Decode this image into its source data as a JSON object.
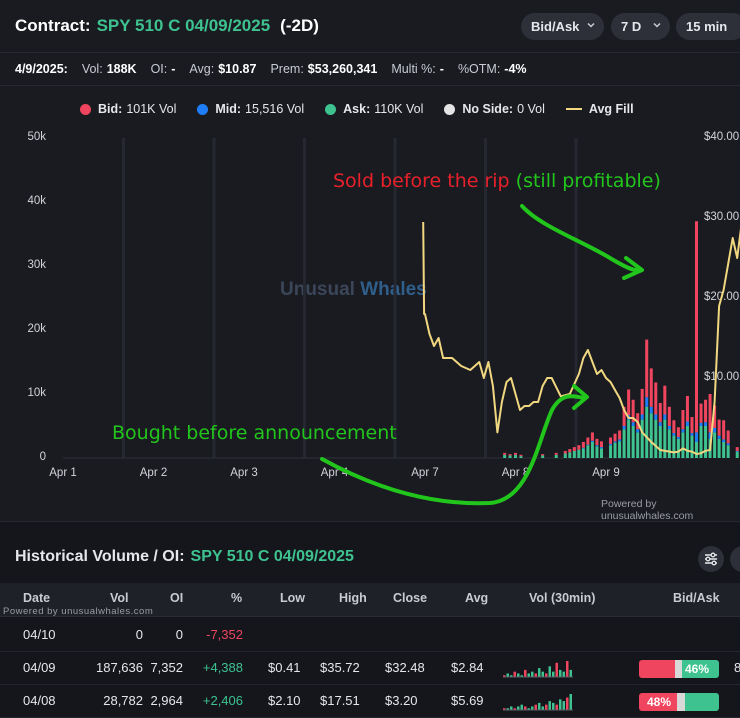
{
  "header": {
    "contract_label": "Contract:",
    "contract_name": "SPY 510 C 04/09/2025",
    "dte": "(-2D)",
    "side_filter": "Bid/Ask",
    "range_filter": "7 D",
    "interval_filter": "15 min"
  },
  "summary": {
    "date": "4/9/2025:",
    "vol_label": "Vol:",
    "vol_value": "188K",
    "oi_label": "OI:",
    "oi_value": "-",
    "avg_label": "Avg:",
    "avg_value": "$10.87",
    "prem_label": "Prem:",
    "prem_value": "$53,260,341",
    "multi_label": "Multi %:",
    "multi_value": "-",
    "otm_label": "%OTM:",
    "otm_value": "-4%"
  },
  "legend": {
    "bid_label": "Bid:",
    "bid_value": "101K Vol",
    "mid_label": "Mid:",
    "mid_value": "15,516 Vol",
    "ask_label": "Ask:",
    "ask_value": "110K Vol",
    "noside_label": "No Side:",
    "noside_value": "0 Vol",
    "avgfill_label": "Avg Fill"
  },
  "colors": {
    "bid": "#f0455e",
    "mid": "#1f7ef7",
    "ask": "#3ec28f",
    "noside": "#e4e4e4",
    "avgfill": "#f1d77f",
    "annotation_red": "#e8202a",
    "annotation_green": "#22c51c"
  },
  "chart_data": {
    "type": "bar",
    "y_left_ticks": [
      "50k",
      "40k",
      "30k",
      "20k",
      "10k",
      "0"
    ],
    "y_right_ticks": [
      "$40.00",
      "$30.00",
      "$20.00",
      "$10.00"
    ],
    "x_ticks": [
      "Apr 1",
      "Apr 2",
      "Apr 3",
      "Apr 4",
      "Apr 7",
      "Apr 8",
      "Apr 9"
    ],
    "ylim_volume": [
      0,
      50000
    ],
    "ylim_price": [
      0,
      40
    ],
    "watermark_a": "Unusual",
    "watermark_b": "Whales",
    "powered_by": "Powered by unusualwhales.com",
    "volume_bars": {
      "x": [
        4.88,
        4.94,
        5.0,
        5.06,
        5.3,
        5.45,
        5.55,
        5.6,
        5.65,
        5.7,
        5.75,
        5.8,
        5.85,
        5.9,
        5.95,
        6.05,
        6.1,
        6.15,
        6.2,
        6.25,
        6.3,
        6.35,
        6.4,
        6.45,
        6.5,
        6.55,
        6.6,
        6.65,
        6.7,
        6.75,
        6.8,
        6.85,
        6.9,
        6.95,
        7.0,
        7.05,
        7.1,
        7.15,
        7.2,
        7.25,
        7.3,
        7.35,
        7.45,
        7.55,
        7.65,
        7.75
      ],
      "bid": [
        300,
        200,
        300,
        200,
        200,
        300,
        400,
        500,
        600,
        700,
        900,
        1100,
        1300,
        1000,
        900,
        1000,
        1200,
        1400,
        3000,
        4000,
        3500,
        2500,
        4000,
        9000,
        6000,
        5000,
        3000,
        4500,
        3000,
        2000,
        1500,
        3000,
        4000,
        2500,
        33000,
        3000,
        3500,
        6000,
        3500,
        2500,
        3000,
        2000,
        600,
        400,
        300,
        200
      ],
      "mid": [
        0,
        0,
        0,
        0,
        0,
        0,
        0,
        0,
        0,
        0,
        100,
        100,
        200,
        200,
        200,
        200,
        200,
        300,
        500,
        700,
        600,
        500,
        800,
        1500,
        1000,
        800,
        600,
        800,
        500,
        400,
        300,
        500,
        700,
        400,
        1500,
        500,
        600,
        1000,
        700,
        500,
        400,
        300,
        100,
        0,
        0,
        0
      ],
      "ask": [
        500,
        400,
        500,
        300,
        400,
        500,
        700,
        900,
        1100,
        1300,
        1500,
        2000,
        2500,
        1800,
        1500,
        2000,
        2400,
        2600,
        4500,
        6000,
        5000,
        4000,
        6000,
        8000,
        7000,
        6000,
        5000,
        6000,
        4500,
        3500,
        3000,
        4000,
        5000,
        3500,
        2500,
        5000,
        5000,
        3000,
        4000,
        3000,
        2500,
        2000,
        1000,
        700,
        500,
        300
      ]
    },
    "avg_fill": {
      "x": [
        3.98,
        3.99,
        4.0,
        4.05,
        4.1,
        4.15,
        4.2,
        4.3,
        4.4,
        4.5,
        4.6,
        4.65,
        4.7,
        4.75,
        4.8,
        4.85,
        4.9,
        4.95,
        5.0,
        5.05,
        5.1,
        5.15,
        5.2,
        5.25,
        5.3,
        5.35,
        5.4,
        5.5,
        5.6,
        5.7,
        5.75,
        5.8,
        5.85,
        5.9,
        5.95,
        6.0,
        6.05,
        6.1,
        6.15,
        6.2,
        6.25,
        6.3,
        6.35,
        6.4,
        6.5,
        6.6,
        6.7,
        6.75,
        6.8,
        6.85,
        6.9,
        6.95,
        7.0,
        7.05,
        7.1,
        7.15,
        7.2,
        7.25,
        7.3,
        7.4,
        7.45,
        7.5,
        7.55,
        7.6,
        7.7,
        7.8,
        7.9
      ],
      "y": [
        29.5,
        18,
        18,
        15.5,
        14,
        15,
        12.5,
        12.5,
        11.5,
        11,
        12,
        10,
        12,
        9,
        3.2,
        7,
        9.5,
        10,
        8,
        6,
        6.5,
        6.5,
        7,
        7,
        9,
        10,
        10,
        7.7,
        8,
        10.5,
        12.5,
        13.5,
        12,
        10.5,
        11,
        10,
        9.5,
        8.5,
        7.5,
        6,
        5,
        5,
        4.5,
        3.2,
        2,
        1,
        0.8,
        0.7,
        0.8,
        1.2,
        0.9,
        0.8,
        0.5,
        0.6,
        0.9,
        1,
        7,
        19,
        21,
        27.5,
        25,
        29.5,
        26.5,
        23,
        30,
        32,
        35
      ]
    }
  },
  "annotations": {
    "sold_part1": "Sold before the rip",
    "sold_part2": "(still profitable)",
    "bought": "Bought before announcement"
  },
  "history": {
    "title": "Historical Volume / OI:",
    "contract": "SPY 510 C 04/09/2025",
    "powered_by": "Powered by unusualwhales.com",
    "columns": [
      "Date",
      "Vol",
      "OI",
      "%",
      "Low",
      "High",
      "Close",
      "Avg",
      "Vol (30min)",
      "Bid/Ask"
    ],
    "rows": [
      {
        "date": "04/10",
        "vol": "0",
        "oi": "0",
        "chg": "-7,352",
        "low": "",
        "high": "",
        "close": "",
        "avg": "",
        "bidask_pct": "",
        "bid_share": 0,
        "ask_share": 0,
        "spark": []
      },
      {
        "date": "04/09",
        "vol": "187,636",
        "oi": "7,352",
        "chg": "+4,388",
        "low": "$0.41",
        "high": "$35.72",
        "close": "$32.48",
        "avg": "$2.84",
        "bidask_pct": "46%",
        "bid_share": 0.45,
        "ask_share": 0.46,
        "spark": [
          1,
          2,
          1,
          3,
          2,
          1,
          4,
          2,
          3,
          2,
          5,
          3,
          2,
          6,
          3,
          8,
          4,
          3,
          9,
          4
        ]
      },
      {
        "date": "04/08",
        "vol": "28,782",
        "oi": "2,964",
        "chg": "+2,406",
        "low": "$2.10",
        "high": "$17.51",
        "close": "$3.20",
        "avg": "$5.69",
        "bidask_pct": "48%",
        "bid_share": 0.48,
        "ask_share": 0.42,
        "spark": [
          1,
          1,
          2,
          1,
          2,
          3,
          2,
          1,
          2,
          3,
          4,
          2,
          3,
          5,
          4,
          3,
          6,
          5,
          7,
          9
        ]
      }
    ],
    "row_edge_char": "8"
  }
}
